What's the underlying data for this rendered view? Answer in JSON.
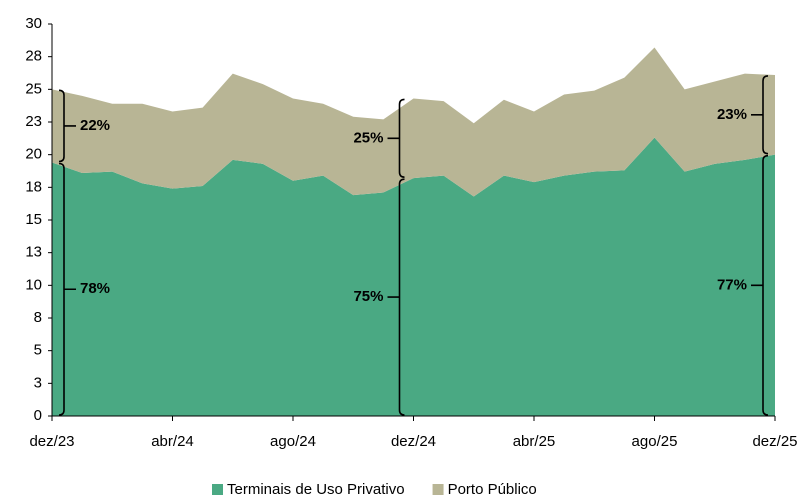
{
  "chart_data": {
    "type": "stacked_area",
    "categories": [
      "dez/23",
      null,
      null,
      null,
      "abr/24",
      null,
      null,
      null,
      "ago/24",
      null,
      null,
      null,
      "dez/24",
      null,
      null,
      null,
      "abr/25",
      null,
      null,
      null,
      "ago/25",
      null,
      null,
      null,
      "dez/25"
    ],
    "series": [
      {
        "name": "Terminais de Uso Privativo",
        "color": "#4aa983",
        "values": [
          19.4,
          18.6,
          18.7,
          17.8,
          17.4,
          17.6,
          19.6,
          19.3,
          18.0,
          18.4,
          16.9,
          17.1,
          18.2,
          18.4,
          16.8,
          18.4,
          17.9,
          18.4,
          18.7,
          18.8,
          21.3,
          18.7,
          19.3,
          19.6,
          20.0
        ]
      },
      {
        "name": "Porto Público",
        "color": "#b8b595",
        "values": [
          5.6,
          5.9,
          5.2,
          6.1,
          5.9,
          6.0,
          6.6,
          6.1,
          6.3,
          5.5,
          6.0,
          5.6,
          6.1,
          5.7,
          5.6,
          5.8,
          5.4,
          6.2,
          6.2,
          7.1,
          6.9,
          6.3,
          6.3,
          6.6,
          6.1
        ]
      }
    ],
    "annotations": [
      {
        "label": "78%",
        "series": 0,
        "category": "dez/23"
      },
      {
        "label": "22%",
        "series": 1,
        "category": "dez/23"
      },
      {
        "label": "75%",
        "series": 0,
        "category": "dez/24"
      },
      {
        "label": "25%",
        "series": 1,
        "category": "dez/24"
      },
      {
        "label": "77%",
        "series": 0,
        "category": "dez/25"
      },
      {
        "label": "23%",
        "series": 1,
        "category": "dez/25"
      }
    ],
    "ylim": [
      0,
      30
    ],
    "yticks": [
      0,
      {
        "value": 2.5,
        "label": "3"
      },
      5,
      {
        "value": 7.5,
        "label": "8"
      },
      10,
      {
        "value": 12.5,
        "label": "13"
      },
      15,
      {
        "value": 17.5,
        "label": "18"
      },
      20,
      {
        "value": 22.5,
        "label": "23"
      },
      25,
      {
        "value": 27.5,
        "label": "28"
      },
      30
    ],
    "legend": "bottom"
  }
}
